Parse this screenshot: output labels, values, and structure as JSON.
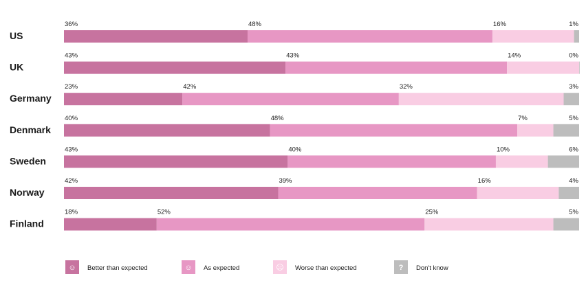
{
  "colors": {
    "better": "#c7739f",
    "as_expected": "#e797c4",
    "worse": "#f9cde3",
    "dont_know": "#bdbdbd"
  },
  "icons": {
    "better": "smiley-icon",
    "as_expected": "neutral-face-icon",
    "worse": "frown-icon",
    "dont_know": "question-mark-icon"
  },
  "chart_data": {
    "type": "bar",
    "orientation": "horizontal",
    "stacked": true,
    "categories": [
      "US",
      "UK",
      "Germany",
      "Denmark",
      "Sweden",
      "Norway",
      "Finland"
    ],
    "series": [
      {
        "name": "Better than expected",
        "key": "better",
        "values": [
          36,
          43,
          23,
          40,
          43,
          42,
          18
        ]
      },
      {
        "name": "As expected",
        "key": "as_expected",
        "values": [
          48,
          43,
          42,
          48,
          40,
          39,
          52
        ]
      },
      {
        "name": "Worse than expected",
        "key": "worse",
        "values": [
          16,
          14,
          32,
          7,
          10,
          16,
          25
        ]
      },
      {
        "name": "Don't know",
        "key": "dont_know",
        "values": [
          1,
          0,
          3,
          5,
          6,
          4,
          5
        ]
      }
    ],
    "value_suffix": "%",
    "legend_position": "bottom",
    "grid": false
  }
}
